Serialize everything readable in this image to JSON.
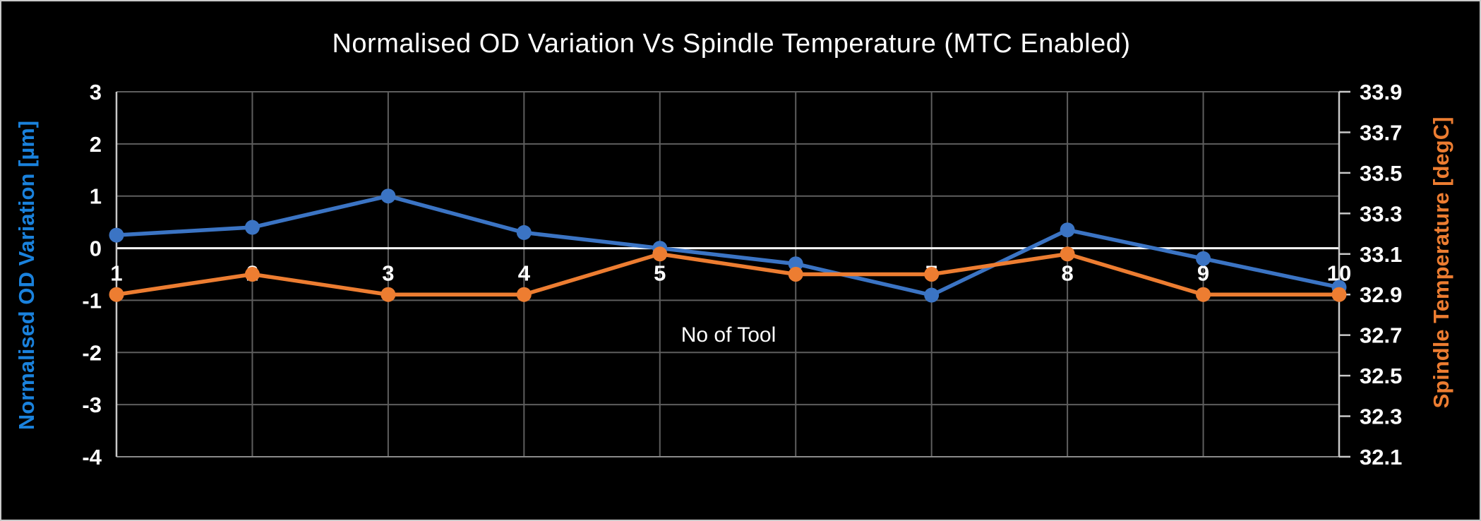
{
  "chart_data": {
    "type": "line",
    "title": "Normalised OD Variation Vs Spindle Temperature (MTC Enabled)",
    "background_color": "#000000",
    "gridline_color": "#5e5e5e",
    "zero_line_color": "#ffffff",
    "tick_label_color": "#ffffff",
    "legend": "none",
    "x_axis": {
      "title": "No of Tool",
      "categories": [
        "1",
        "2",
        "3",
        "4",
        "5",
        "6",
        "7",
        "8",
        "9",
        "10"
      ]
    },
    "left_axis": {
      "title": "Normalised OD Variation [µm]",
      "color": "#1a82dd",
      "min": -4,
      "max": 3,
      "ticks": [
        3,
        2,
        1,
        0,
        -1,
        -2,
        -3,
        -4
      ]
    },
    "right_axis": {
      "title": "Spindle Temperature [degC]",
      "color": "#ed7d31",
      "min": 32.1,
      "max": 33.9,
      "ticks": [
        33.9,
        33.7,
        33.5,
        33.3,
        33.1,
        32.9,
        32.7,
        32.5,
        32.3,
        32.1
      ]
    },
    "series": [
      {
        "name": "Normalised OD Variation [µm]",
        "axis": "left",
        "color": "#3b74c4",
        "values": [
          0.25,
          0.4,
          1.0,
          0.3,
          0.0,
          -0.3,
          -0.9,
          0.35,
          -0.2,
          -0.75
        ]
      },
      {
        "name": "Spindle Temperature [degC]",
        "axis": "right",
        "color": "#ed7d31",
        "values": [
          32.9,
          33.0,
          32.9,
          32.9,
          33.1,
          33.0,
          33.0,
          33.1,
          32.9,
          32.9
        ]
      }
    ]
  }
}
